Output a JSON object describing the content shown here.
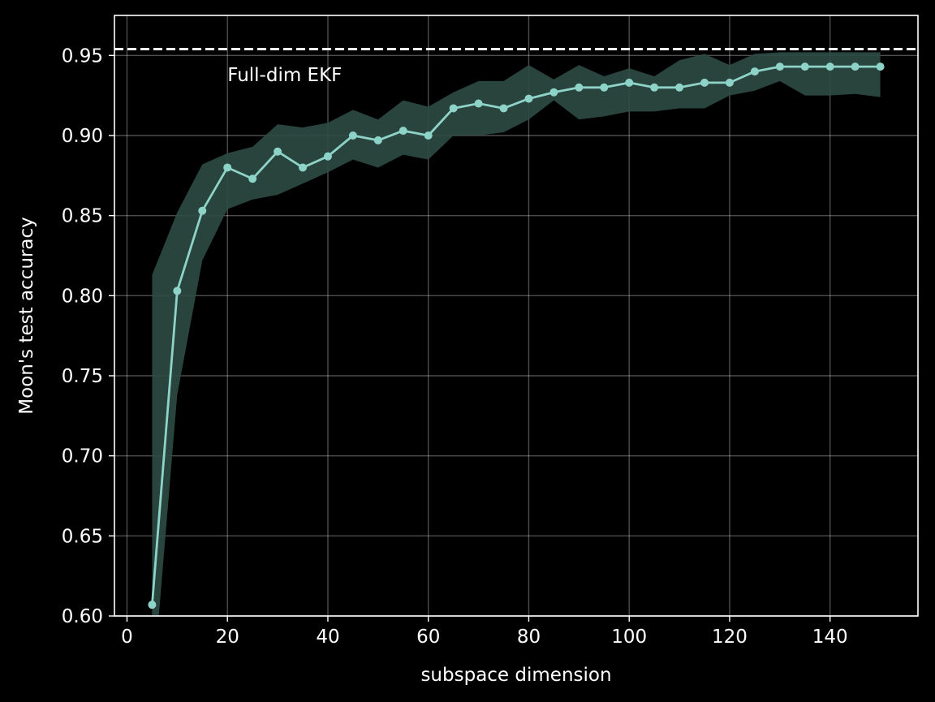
{
  "chart_data": {
    "type": "line",
    "title": "",
    "xlabel": "subspace dimension",
    "ylabel": "Moon's test accuracy",
    "xlim": [
      -2.5,
      157.5
    ],
    "ylim": [
      0.6,
      0.975
    ],
    "grid": true,
    "xticks": [
      0,
      20,
      40,
      60,
      80,
      100,
      120,
      140
    ],
    "yticks": [
      0.6,
      0.65,
      0.7,
      0.75,
      0.8,
      0.85,
      0.9,
      0.95
    ],
    "xtick_labels": [
      "0",
      "20",
      "40",
      "60",
      "80",
      "100",
      "120",
      "140"
    ],
    "ytick_labels": [
      "0.60",
      "0.65",
      "0.70",
      "0.75",
      "0.80",
      "0.85",
      "0.90",
      "0.95"
    ],
    "series": [
      {
        "color": "#8dd3c7",
        "x": [
          5,
          10,
          15,
          20,
          25,
          30,
          35,
          40,
          45,
          50,
          55,
          60,
          65,
          70,
          75,
          80,
          85,
          90,
          95,
          100,
          105,
          110,
          115,
          120,
          125,
          130,
          135,
          140,
          145,
          150
        ],
        "values": [
          0.607,
          0.803,
          0.853,
          0.88,
          0.873,
          0.89,
          0.88,
          0.887,
          0.9,
          0.897,
          0.903,
          0.9,
          0.917,
          0.92,
          0.917,
          0.923,
          0.927,
          0.93,
          0.93,
          0.933,
          0.93,
          0.93,
          0.933,
          0.933,
          0.94,
          0.943,
          0.943,
          0.943,
          0.943,
          0.943
        ],
        "band_lower": [
          0.55,
          0.738,
          0.822,
          0.854,
          0.86,
          0.863,
          0.87,
          0.877,
          0.885,
          0.88,
          0.888,
          0.885,
          0.9,
          0.9,
          0.902,
          0.91,
          0.922,
          0.91,
          0.912,
          0.915,
          0.915,
          0.917,
          0.917,
          0.925,
          0.928,
          0.934,
          0.925,
          0.925,
          0.926,
          0.924
        ],
        "band_upper": [
          0.813,
          0.852,
          0.882,
          0.889,
          0.893,
          0.907,
          0.905,
          0.908,
          0.916,
          0.91,
          0.922,
          0.918,
          0.927,
          0.934,
          0.934,
          0.944,
          0.935,
          0.944,
          0.937,
          0.942,
          0.937,
          0.947,
          0.951,
          0.944,
          0.951,
          0.952,
          0.952,
          0.952,
          0.952,
          0.952
        ],
        "band_color": "#2e4a44"
      }
    ],
    "reference_line": {
      "y": 0.954,
      "style": "dashed",
      "color": "#ffffff",
      "label": "Full-dim EKF",
      "label_x": 20,
      "label_y": 0.938
    }
  }
}
